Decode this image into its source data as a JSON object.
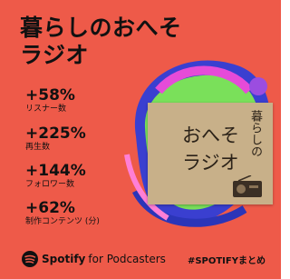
{
  "header": {
    "title_lines": [
      "暮らしのおへそ",
      "ラジオ"
    ]
  },
  "stats": [
    {
      "value": "+58%",
      "label": "リスナー数"
    },
    {
      "value": "+225%",
      "label": "再生数"
    },
    {
      "value": "+144%",
      "label": "フォロワー数"
    },
    {
      "value": "+62%",
      "label": "制作コンテンツ (分)"
    }
  ],
  "cover": {
    "title_lines": [
      "暮らしの",
      "おへそ",
      "ラジオ"
    ]
  },
  "footer": {
    "brand_name": "Spotify",
    "brand_suffix": "for Podcasters",
    "hashtag": "#SPOTIFYまとめ"
  }
}
